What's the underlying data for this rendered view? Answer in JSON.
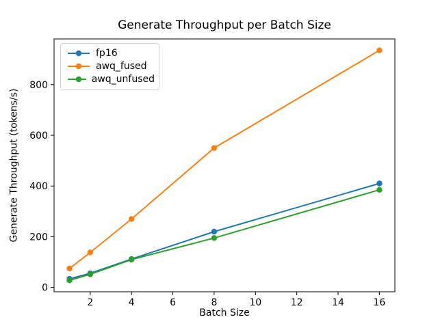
{
  "chart_data": {
    "type": "line",
    "title": "Generate Throughput per Batch Size",
    "xlabel": "Batch Size",
    "ylabel": "Generate Throughput (tokens/s)",
    "x": [
      1,
      2,
      4,
      8,
      16
    ],
    "series": [
      {
        "name": "fp16",
        "color": "#1f77b4",
        "values": [
          34,
          56,
          112,
          220,
          410
        ]
      },
      {
        "name": "awq_fused",
        "color": "#ff7f0e",
        "values": [
          75,
          138,
          270,
          550,
          935
        ]
      },
      {
        "name": "awq_unfused",
        "color": "#2ca02c",
        "values": [
          28,
          52,
          110,
          195,
          385
        ]
      }
    ],
    "xticks": [
      2,
      4,
      6,
      8,
      10,
      12,
      14,
      16
    ],
    "yticks": [
      0,
      200,
      400,
      600,
      800
    ],
    "xlim": [
      0.25,
      16.75
    ],
    "ylim": [
      -17,
      980
    ],
    "grid": false,
    "marker": "o",
    "legend": {
      "position": "upper left",
      "labels": [
        "fp16",
        "awq_fused",
        "awq_unfused"
      ]
    }
  }
}
